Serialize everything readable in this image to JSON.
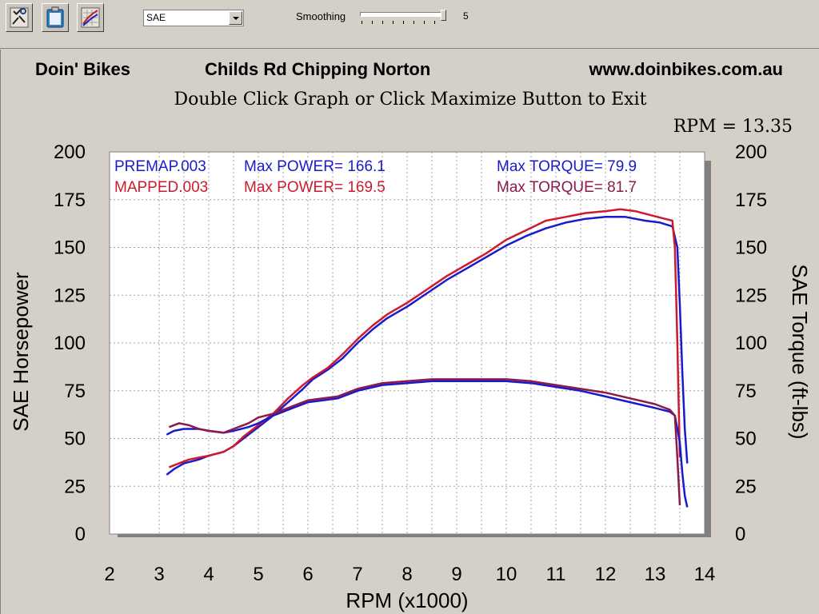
{
  "toolbar": {
    "buttons": [
      {
        "name": "tools-icon"
      },
      {
        "name": "clipboard-icon"
      },
      {
        "name": "graph-icon"
      }
    ],
    "correction_select": "SAE",
    "smoothing_label": "Smoothing",
    "smoothing_value": "5"
  },
  "header": {
    "left": "Doin' Bikes",
    "center": "Childs Rd  Chipping Norton",
    "right": "www.doinbikes.com.au",
    "subtitle": "Double Click Graph or Click Maximize Button to Exit",
    "rpm_readout": "RPM = 13.35"
  },
  "chart_data": {
    "type": "line",
    "xlabel": "RPM (x1000)",
    "ylabel": "SAE Horsepower",
    "y2label": "SAE Torque (ft-lbs)",
    "xlim": [
      2,
      14
    ],
    "ylim": [
      0,
      200
    ],
    "y2lim": [
      0,
      200
    ],
    "x_ticks": [
      "2",
      "3",
      "4",
      "5",
      "6",
      "7",
      "8",
      "9",
      "10",
      "11",
      "12",
      "13",
      "14"
    ],
    "y_ticks": [
      "0",
      "25",
      "50",
      "75",
      "100",
      "125",
      "150",
      "175",
      "200"
    ],
    "grid": true,
    "colors": {
      "premap": "#1a1acc",
      "mapped": "#cc1a2e",
      "mapped_torque": "#8c1a4a"
    },
    "legend": [
      {
        "file": "PREMAP.003",
        "power_label": "Max POWER= 166.1",
        "torque_label": "Max TORQUE= 79.9",
        "color": "#1a1acc",
        "torque_color": "#1a1acc"
      },
      {
        "file": "MAPPED.003",
        "power_label": "Max POWER= 169.5",
        "torque_label": "Max TORQUE= 81.7",
        "color": "#cc1a2e",
        "torque_color": "#8c1a4a"
      }
    ],
    "series": [
      {
        "name": "PREMAP.003",
        "kind": "power",
        "color": "#1a1acc",
        "x": [
          3.15,
          3.3,
          3.5,
          3.8,
          4.0,
          4.3,
          4.5,
          4.7,
          5.0,
          5.3,
          5.6,
          5.9,
          6.1,
          6.4,
          6.7,
          7.0,
          7.3,
          7.6,
          8.0,
          8.4,
          8.8,
          9.2,
          9.6,
          10.0,
          10.4,
          10.8,
          11.2,
          11.6,
          12.0,
          12.4,
          12.8,
          13.1,
          13.35,
          13.45,
          13.5,
          13.55,
          13.6,
          13.65
        ],
        "y": [
          31,
          34,
          37,
          39,
          41,
          43,
          46,
          50,
          56,
          62,
          69,
          76,
          81,
          86,
          92,
          100,
          107,
          113,
          119,
          126,
          133,
          139,
          145,
          151,
          156,
          160,
          163,
          165,
          166,
          166,
          164,
          163,
          161,
          150,
          120,
          85,
          55,
          37
        ]
      },
      {
        "name": "MAPPED.003",
        "kind": "power",
        "color": "#cc1a2e",
        "x": [
          3.2,
          3.4,
          3.6,
          3.8,
          4.0,
          4.3,
          4.5,
          4.7,
          5.0,
          5.3,
          5.6,
          5.9,
          6.1,
          6.4,
          6.7,
          7.0,
          7.3,
          7.6,
          8.0,
          8.4,
          8.8,
          9.2,
          9.6,
          10.0,
          10.4,
          10.8,
          11.2,
          11.6,
          12.0,
          12.3,
          12.6,
          12.9,
          13.2,
          13.35,
          13.4,
          13.45,
          13.5
        ],
        "y": [
          35,
          37,
          39,
          40,
          41,
          43,
          46,
          51,
          57,
          63,
          71,
          78,
          82,
          87,
          94,
          102,
          109,
          115,
          121,
          128,
          135,
          141,
          147,
          154,
          159,
          164,
          166,
          168,
          169,
          170,
          169,
          167,
          165,
          164,
          150,
          100,
          40
        ]
      },
      {
        "name": "PREMAP.003",
        "kind": "torque",
        "color": "#1a1acc",
        "x": [
          3.15,
          3.3,
          3.5,
          3.8,
          4.0,
          4.3,
          4.5,
          4.8,
          5.0,
          5.3,
          5.6,
          6.0,
          6.3,
          6.6,
          7.0,
          7.5,
          8.0,
          8.5,
          9.0,
          9.5,
          10.0,
          10.5,
          11.0,
          11.5,
          12.0,
          12.5,
          13.0,
          13.3,
          13.4,
          13.5,
          13.55,
          13.6,
          13.65
        ],
        "y": [
          52,
          54,
          55,
          55,
          54,
          53,
          54,
          56,
          58,
          62,
          65,
          69,
          70,
          71,
          75,
          78,
          79,
          80,
          80,
          80,
          80,
          79,
          77,
          75,
          72,
          69,
          66,
          64,
          62,
          48,
          32,
          20,
          14
        ]
      },
      {
        "name": "MAPPED.003",
        "kind": "torque",
        "color": "#8c1a4a",
        "x": [
          3.2,
          3.4,
          3.6,
          3.8,
          4.0,
          4.3,
          4.5,
          4.8,
          5.0,
          5.3,
          5.6,
          6.0,
          6.3,
          6.6,
          7.0,
          7.5,
          8.0,
          8.5,
          9.0,
          9.5,
          10.0,
          10.5,
          11.0,
          11.5,
          12.0,
          12.5,
          13.0,
          13.3,
          13.4,
          13.45,
          13.5
        ],
        "y": [
          56,
          58,
          57,
          55,
          54,
          53,
          55,
          58,
          61,
          63,
          66,
          70,
          71,
          72,
          76,
          79,
          80,
          81,
          81,
          81,
          81,
          80,
          78,
          76,
          74,
          71,
          68,
          65,
          62,
          40,
          15
        ]
      }
    ]
  }
}
